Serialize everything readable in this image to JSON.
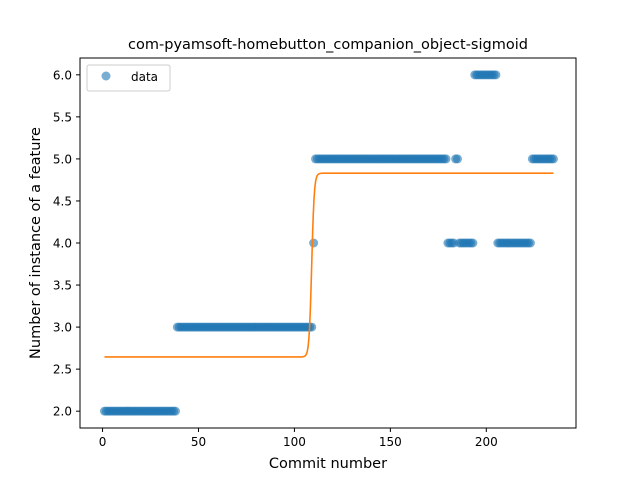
{
  "chart_data": {
    "type": "scatter",
    "title": "com-pyamsoft-homebutton_companion_object-sigmoid",
    "xlabel": "Commit number",
    "ylabel": "Number of instance of a feature",
    "xlim": [
      -11.75,
      246.75
    ],
    "ylim": [
      1.8,
      6.2
    ],
    "xticks": [
      0,
      50,
      100,
      150,
      200
    ],
    "yticks": [
      2.0,
      2.5,
      3.0,
      3.5,
      4.0,
      4.5,
      5.0,
      5.5,
      6.0
    ],
    "legend": {
      "position": "upper-left",
      "entries": [
        "data"
      ]
    },
    "colors": {
      "data": "#1f77b4",
      "fit": "#ff7f0e"
    },
    "series": [
      {
        "name": "data",
        "kind": "scatter",
        "x": [
          1,
          2,
          3,
          4,
          5,
          6,
          7,
          8,
          9,
          10,
          11,
          12,
          13,
          14,
          15,
          16,
          17,
          18,
          19,
          20,
          21,
          22,
          23,
          24,
          25,
          26,
          27,
          28,
          29,
          30,
          31,
          32,
          33,
          34,
          35,
          36,
          37,
          38,
          39,
          40,
          41,
          42,
          43,
          44,
          45,
          46,
          47,
          48,
          49,
          50,
          51,
          52,
          53,
          54,
          55,
          56,
          57,
          58,
          59,
          60,
          61,
          62,
          63,
          64,
          65,
          66,
          67,
          68,
          69,
          70,
          71,
          72,
          73,
          74,
          75,
          76,
          77,
          78,
          79,
          80,
          81,
          82,
          83,
          84,
          85,
          86,
          87,
          88,
          89,
          90,
          91,
          92,
          93,
          94,
          95,
          96,
          97,
          98,
          99,
          100,
          101,
          102,
          103,
          104,
          105,
          106,
          107,
          108,
          109,
          110,
          111,
          112,
          113,
          114,
          115,
          116,
          117,
          118,
          119,
          120,
          121,
          122,
          123,
          124,
          125,
          126,
          127,
          128,
          129,
          130,
          131,
          132,
          133,
          134,
          135,
          136,
          137,
          138,
          139,
          140,
          141,
          142,
          143,
          144,
          145,
          146,
          147,
          148,
          149,
          150,
          151,
          152,
          153,
          154,
          155,
          156,
          157,
          158,
          159,
          160,
          161,
          162,
          163,
          164,
          165,
          166,
          167,
          168,
          169,
          170,
          171,
          172,
          173,
          174,
          175,
          176,
          177,
          178,
          179,
          180,
          181,
          182,
          183,
          184,
          185,
          186,
          187,
          188,
          189,
          190,
          191,
          192,
          193,
          194,
          195,
          196,
          197,
          198,
          199,
          200,
          201,
          202,
          203,
          204,
          205,
          206,
          207,
          208,
          209,
          210,
          211,
          212,
          213,
          214,
          215,
          216,
          217,
          218,
          219,
          220,
          221,
          222,
          223,
          224,
          225,
          226,
          227,
          228,
          229,
          230,
          231,
          232,
          233,
          234,
          235
        ],
        "y": [
          2,
          2,
          2,
          2,
          2,
          2,
          2,
          2,
          2,
          2,
          2,
          2,
          2,
          2,
          2,
          2,
          2,
          2,
          2,
          2,
          2,
          2,
          2,
          2,
          2,
          2,
          2,
          2,
          2,
          2,
          2,
          2,
          2,
          2,
          2,
          2,
          2,
          2,
          3,
          3,
          3,
          3,
          3,
          3,
          3,
          3,
          3,
          3,
          3,
          3,
          3,
          3,
          3,
          3,
          3,
          3,
          3,
          3,
          3,
          3,
          3,
          3,
          3,
          3,
          3,
          3,
          3,
          3,
          3,
          3,
          3,
          3,
          3,
          3,
          3,
          3,
          3,
          3,
          3,
          3,
          3,
          3,
          3,
          3,
          3,
          3,
          3,
          3,
          3,
          3,
          3,
          3,
          3,
          3,
          3,
          3,
          3,
          3,
          3,
          3,
          3,
          3,
          3,
          3,
          3,
          3,
          3,
          3,
          3,
          4,
          5,
          5,
          5,
          5,
          5,
          5,
          5,
          5,
          5,
          5,
          5,
          5,
          5,
          5,
          5,
          5,
          5,
          5,
          5,
          5,
          5,
          5,
          5,
          5,
          5,
          5,
          5,
          5,
          5,
          5,
          5,
          5,
          5,
          5,
          5,
          5,
          5,
          5,
          5,
          5,
          5,
          5,
          5,
          5,
          5,
          5,
          5,
          5,
          5,
          5,
          5,
          5,
          5,
          5,
          5,
          5,
          5,
          5,
          5,
          5,
          5,
          5,
          5,
          5,
          5,
          5,
          5,
          5,
          5,
          4,
          4,
          4,
          4,
          5,
          5,
          4,
          4,
          4,
          4,
          4,
          4,
          4,
          4,
          6,
          6,
          6,
          6,
          6,
          6,
          6,
          6,
          6,
          6,
          6,
          6,
          4,
          4,
          4,
          4,
          4,
          4,
          4,
          4,
          4,
          4,
          4,
          4,
          4,
          4,
          4,
          4,
          4,
          4,
          5,
          5,
          5,
          5,
          5,
          5,
          5,
          5,
          5,
          5,
          5,
          5
        ]
      },
      {
        "name": "",
        "kind": "line",
        "function": "sigmoid",
        "params": {
          "low": 2.645,
          "high": 4.83,
          "x0": 109,
          "k": 1.5
        },
        "x_range": [
          1,
          235
        ]
      }
    ]
  }
}
